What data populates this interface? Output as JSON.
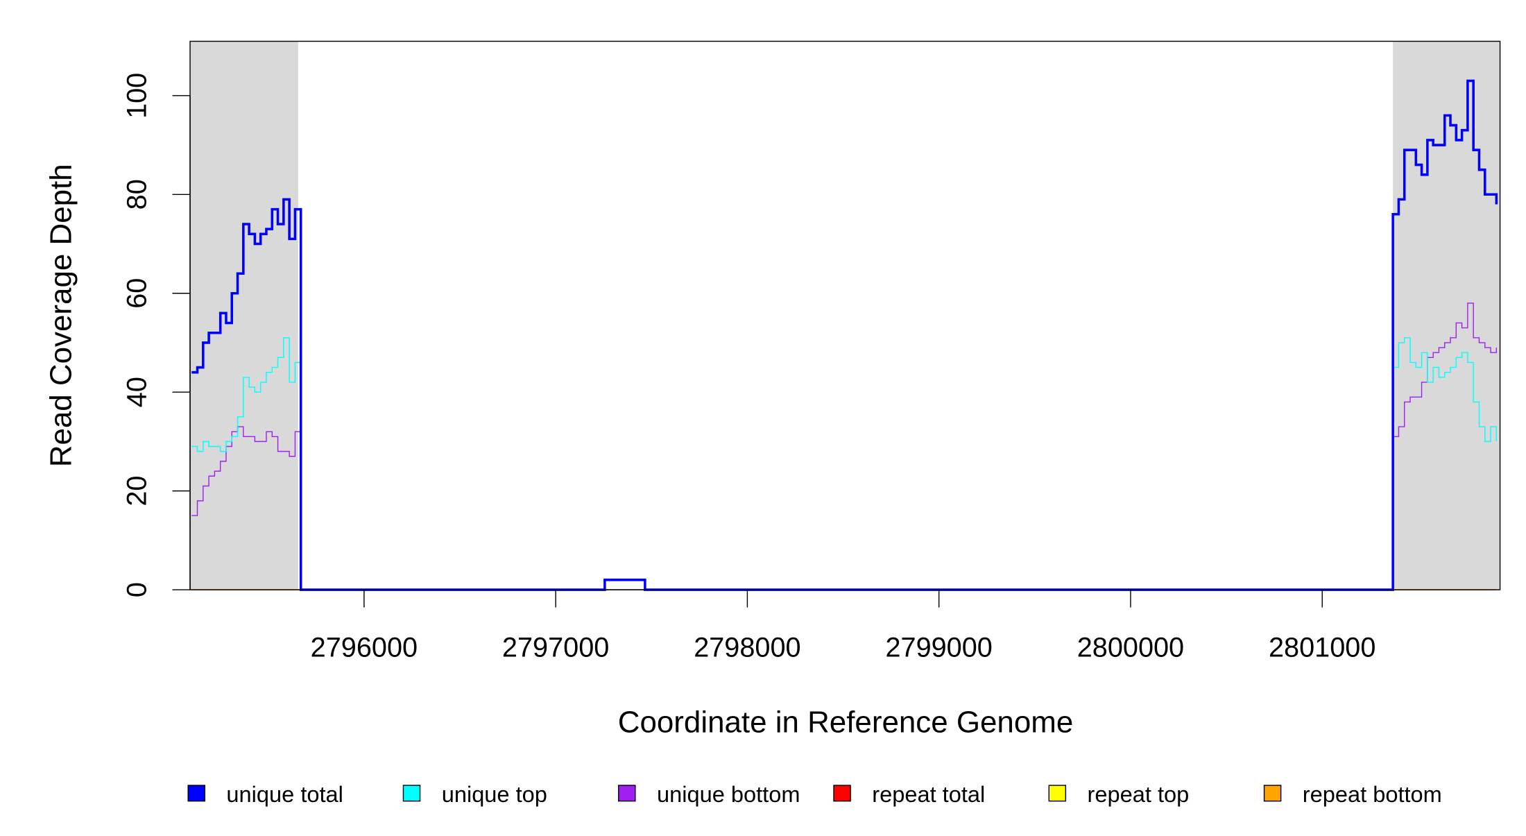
{
  "chart_data": {
    "type": "step",
    "xlabel": "Coordinate in Reference Genome",
    "ylabel": "Read Coverage Depth",
    "xlim": [
      2795092,
      2801928
    ],
    "ylim": [
      0,
      111
    ],
    "xticks": [
      2796000,
      2797000,
      2798000,
      2799000,
      2800000,
      2801000
    ],
    "yticks": [
      0,
      20,
      40,
      60,
      80,
      100
    ],
    "shaded_regions": [
      [
        2795092,
        2795656
      ],
      [
        2801369,
        2801928
      ]
    ],
    "shade_color": "#d9d9d9",
    "legend": "bottom",
    "x": [
      2795100,
      2795130,
      2795160,
      2795190,
      2795220,
      2795250,
      2795280,
      2795310,
      2795340,
      2795370,
      2795400,
      2795430,
      2795460,
      2795490,
      2795520,
      2795550,
      2795580,
      2795610,
      2795640,
      2795670,
      2797256,
      2797466,
      2801369,
      2801399,
      2801429,
      2801459,
      2801489,
      2801519,
      2801549,
      2801579,
      2801609,
      2801639,
      2801669,
      2801699,
      2801729,
      2801759,
      2801789,
      2801819,
      2801849,
      2801879,
      2801909
    ],
    "series": [
      {
        "name": "unique total",
        "color": "#0000ff",
        "width": 2.5,
        "values": [
          44,
          45,
          50,
          52,
          52,
          56,
          54,
          60,
          64,
          74,
          72,
          70,
          72,
          73,
          77,
          74,
          79,
          71,
          77,
          0,
          2,
          0,
          76,
          79,
          89,
          89,
          86,
          84,
          91,
          90,
          90,
          96,
          94,
          91,
          93,
          103,
          89,
          85,
          80,
          80,
          78
        ]
      },
      {
        "name": "unique top",
        "color": "#00ffff",
        "width": 1,
        "values": [
          29,
          28,
          30,
          29,
          29,
          28,
          30,
          31,
          35,
          43,
          41,
          40,
          42,
          44,
          45,
          47,
          51,
          42,
          46,
          0,
          0,
          0,
          45,
          50,
          51,
          46,
          45,
          48,
          42,
          45,
          43,
          44,
          45,
          47,
          48,
          46,
          38,
          33,
          30,
          33,
          30
        ]
      },
      {
        "name": "unique bottom",
        "color": "#a020f0",
        "width": 1,
        "values": [
          15,
          18,
          21,
          23,
          24,
          26,
          29,
          32,
          33,
          31,
          31,
          30,
          30,
          32,
          31,
          28,
          28,
          27,
          32,
          0,
          0,
          0,
          31,
          33,
          38,
          39,
          39,
          42,
          47,
          48,
          49,
          50,
          51,
          54,
          53,
          58,
          51,
          50,
          49,
          48,
          49
        ]
      },
      {
        "name": "repeat total",
        "color": "#ff0000",
        "width": 1,
        "values": [
          0,
          0,
          0,
          0,
          0,
          0,
          0,
          0,
          0,
          0,
          0,
          0,
          0,
          0,
          0,
          0,
          0,
          0,
          0,
          0,
          0,
          0,
          0,
          0,
          0,
          0,
          0,
          0,
          0,
          0,
          0,
          0,
          0,
          0,
          0,
          0,
          0,
          0,
          0,
          0,
          0
        ]
      },
      {
        "name": "repeat top",
        "color": "#ffff00",
        "width": 1,
        "values": [
          0,
          0,
          0,
          0,
          0,
          0,
          0,
          0,
          0,
          0,
          0,
          0,
          0,
          0,
          0,
          0,
          0,
          0,
          0,
          0,
          0,
          0,
          0,
          0,
          0,
          0,
          0,
          0,
          0,
          0,
          0,
          0,
          0,
          0,
          0,
          0,
          0,
          0,
          0,
          0,
          0
        ]
      },
      {
        "name": "repeat bottom",
        "color": "#ffa500",
        "width": 1,
        "values": [
          0,
          0,
          0,
          0,
          0,
          0,
          0,
          0,
          0,
          0,
          0,
          0,
          0,
          0,
          0,
          0,
          0,
          0,
          0,
          0,
          0,
          0,
          0,
          0,
          0,
          0,
          0,
          0,
          0,
          0,
          0,
          0,
          0,
          0,
          0,
          0,
          0,
          0,
          0,
          0,
          0
        ]
      }
    ]
  }
}
